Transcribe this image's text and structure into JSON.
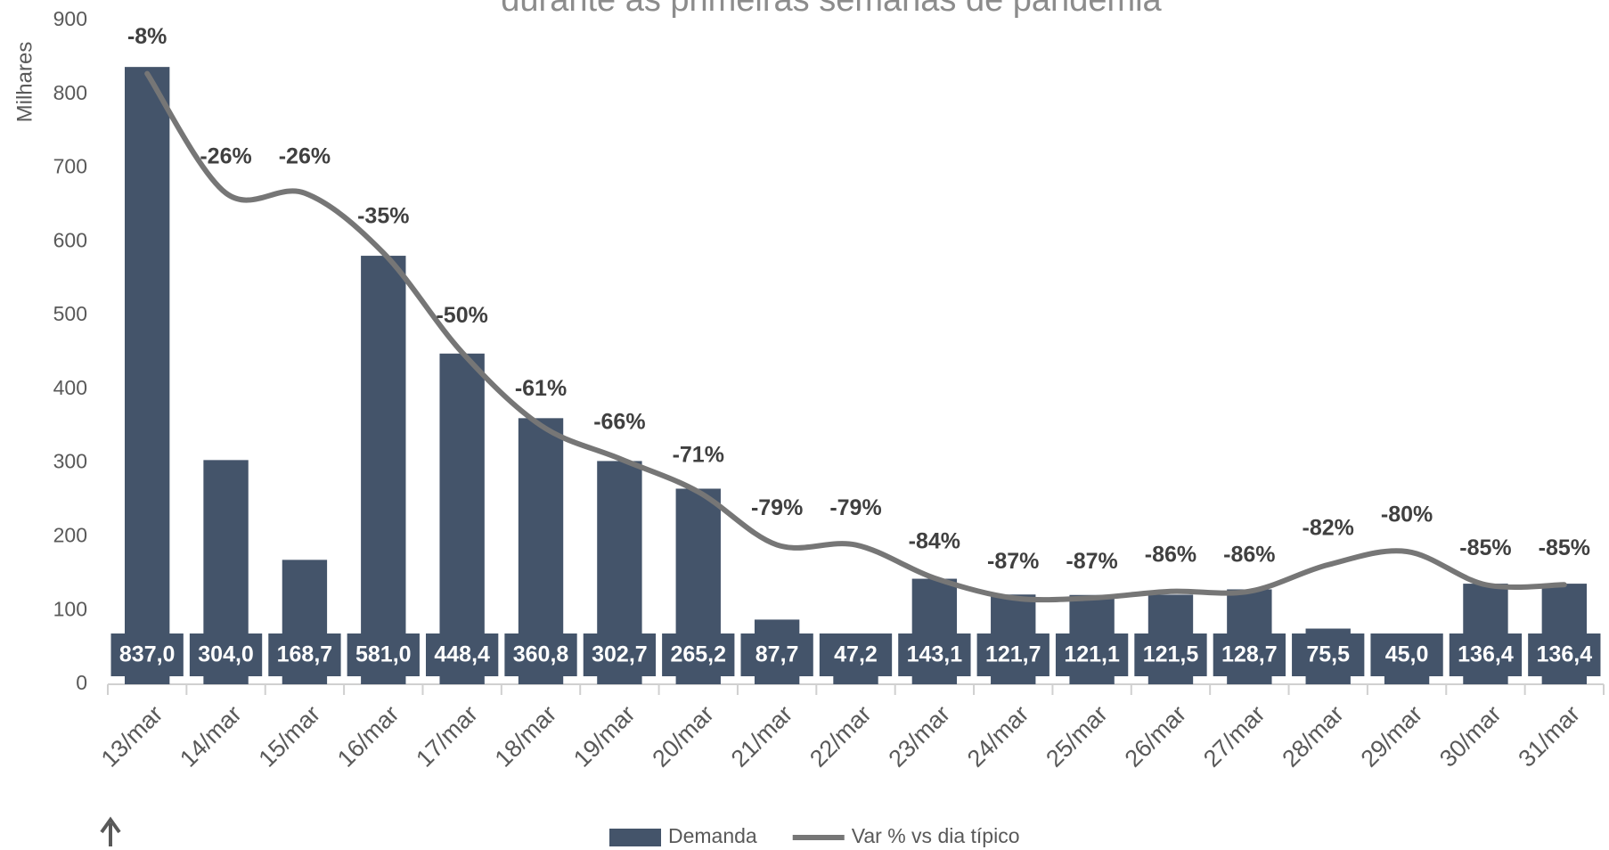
{
  "chart_data": {
    "type": "bar",
    "title": "durante as primeiras semanas de pandemia",
    "y_label": "Milhares",
    "categories": [
      "13/mar",
      "14/mar",
      "15/mar",
      "16/mar",
      "17/mar",
      "18/mar",
      "19/mar",
      "20/mar",
      "21/mar",
      "22/mar",
      "23/mar",
      "24/mar",
      "25/mar",
      "26/mar",
      "27/mar",
      "28/mar",
      "29/mar",
      "30/mar",
      "31/mar"
    ],
    "series": [
      {
        "name": "Demanda",
        "type": "bar",
        "color": "#44546a",
        "values": [
          837.0,
          304.0,
          168.7,
          581.0,
          448.4,
          360.8,
          302.7,
          265.2,
          87.7,
          47.2,
          143.1,
          121.7,
          121.1,
          121.5,
          128.7,
          75.5,
          45.0,
          136.4,
          136.4
        ],
        "value_labels": [
          "837,0",
          "304,0",
          "168,7",
          "581,0",
          "448,4",
          "360,8",
          "302,7",
          "265,2",
          "87,7",
          "47,2",
          "143,1",
          "121,7",
          "121,1",
          "121,5",
          "128,7",
          "75,5",
          "45,0",
          "136,4",
          "136,4"
        ]
      },
      {
        "name": "Var % vs dia típico",
        "type": "line",
        "axis": "y2",
        "color": "#767676",
        "values": [
          -8,
          -26,
          -26,
          -35,
          -50,
          -61,
          -66,
          -71,
          -79,
          -79,
          -84,
          -87,
          -87,
          -86,
          -86,
          -82,
          -80,
          -85,
          -85
        ],
        "value_labels": [
          "-8%",
          "-26%",
          "-26%",
          "-35%",
          "-50%",
          "-61%",
          "-66%",
          "-71%",
          "-79%",
          "-79%",
          "-84%",
          "-87%",
          "-87%",
          "-86%",
          "-86%",
          "-82%",
          "-80%",
          "-85%",
          "-85%"
        ]
      }
    ],
    "ylim": [
      0,
      900
    ],
    "yticks": [
      0,
      100,
      200,
      300,
      400,
      500,
      600,
      700,
      800,
      900
    ],
    "y2lim": [
      -100,
      0
    ],
    "legend": "bottom"
  }
}
